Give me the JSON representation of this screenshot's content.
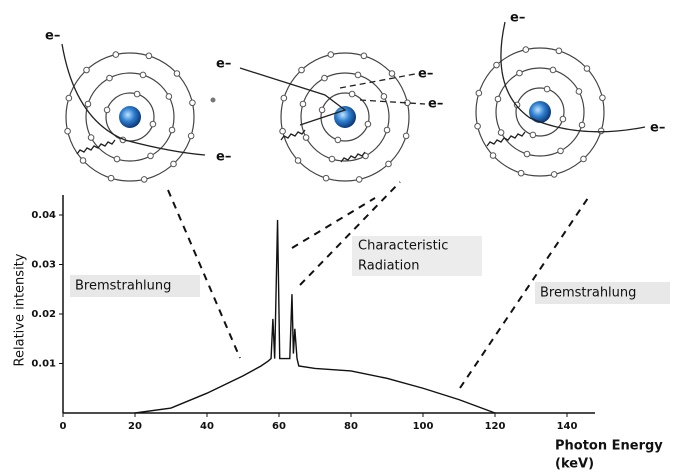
{
  "chart_data": {
    "type": "line",
    "xlabel": [
      "Photon Energy",
      "(keV)"
    ],
    "ylabel": "Relative intensity",
    "annotations": [
      "Bremstrahlung",
      "Characteristic",
      "Radiation",
      "Bremstrahlung"
    ],
    "electron_labels": [
      "e–",
      "e–",
      "e–",
      "e–",
      "e–",
      "e–",
      "e–"
    ],
    "x": [
      20,
      30,
      40,
      50,
      55,
      57,
      57.8,
      58.3,
      58.8,
      59.6,
      60.2,
      63,
      63.6,
      64,
      64.4,
      65,
      65.5,
      70,
      80,
      90,
      100,
      110,
      120
    ],
    "series": [
      {
        "color": "#111111",
        "values": [
          0,
          0.001,
          0.004,
          0.0075,
          0.0095,
          0.0105,
          0.011,
          0.019,
          0.011,
          0.039,
          0.011,
          0.011,
          0.024,
          0.012,
          0.017,
          0.011,
          0.0095,
          0.009,
          0.0085,
          0.007,
          0.005,
          0.0027,
          0
        ]
      }
    ],
    "xlim": [
      0,
      150
    ],
    "ylim": [
      0,
      0.043
    ],
    "xticks": [
      0,
      20,
      40,
      60,
      80,
      100,
      120,
      140
    ],
    "yticks": [
      0.01,
      0.02,
      0.03,
      0.04
    ]
  }
}
